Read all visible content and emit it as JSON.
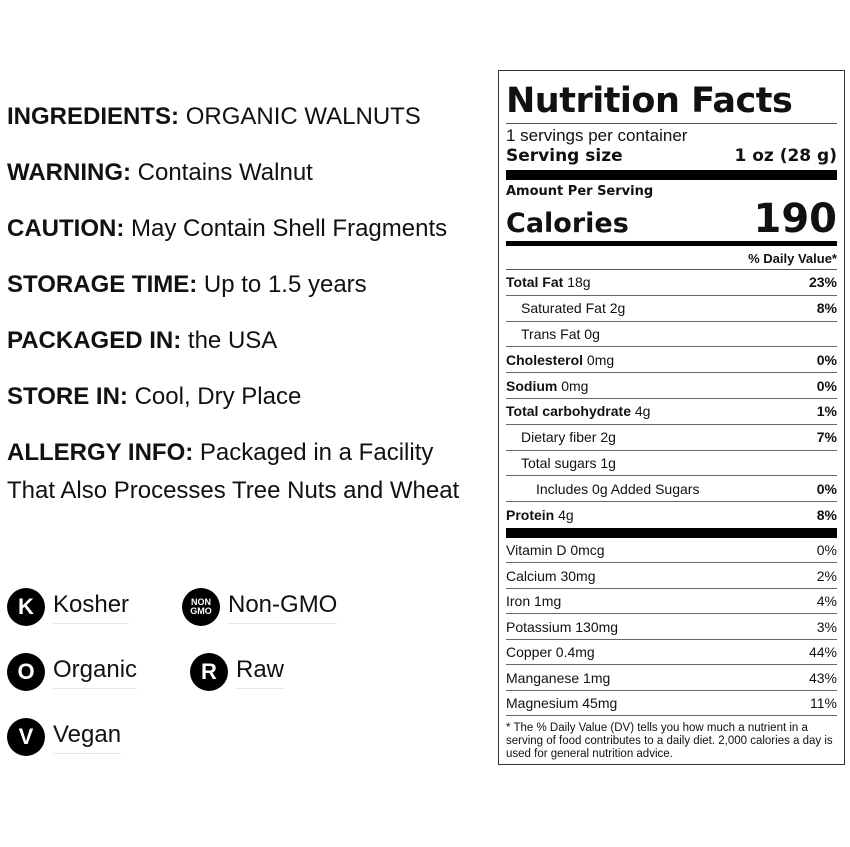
{
  "info": [
    {
      "label": "INGREDIENTS:",
      "value": "ORGANIC WALNUTS"
    },
    {
      "label": "WARNING:",
      "value": "Contains Walnut"
    },
    {
      "label": "CAUTION:",
      "value": "May Contain Shell Fragments"
    },
    {
      "label": "STORAGE TIME:",
      "value": "Up to 1.5 years"
    },
    {
      "label": "PACKAGED IN:",
      "value": "the USA"
    },
    {
      "label": "STORE IN:",
      "value": "Cool, Dry Place"
    },
    {
      "label": "ALLERGY INFO:",
      "value": "Packaged in a Facility That Also Processes Tree Nuts and Wheat"
    }
  ],
  "badges": [
    {
      "icon": "K",
      "label": "Kosher"
    },
    {
      "icon": "NON GMO",
      "label": "Non-GMO"
    },
    {
      "icon": "O",
      "label": "Organic"
    },
    {
      "icon": "R",
      "label": "Raw"
    },
    {
      "icon": "V",
      "label": "Vegan"
    }
  ],
  "nf": {
    "title": "Nutrition Facts",
    "servings": "1 servings per container",
    "serving_label": "Serving size",
    "serving_value": "1 oz (28 g)",
    "amount": "Amount Per Serving",
    "calories_label": "Calories",
    "calories": "190",
    "dv_header": "% Daily Value*",
    "rows": [
      {
        "name": "Total Fat",
        "amt": "18g",
        "dv": "23%",
        "bold": true
      },
      {
        "name": "Saturated Fat",
        "amt": "2g",
        "dv": "8%"
      },
      {
        "name": "Trans Fat",
        "amt": "0g",
        "dv": ""
      },
      {
        "name": "Cholesterol",
        "amt": "0mg",
        "dv": "0%",
        "bold": true
      },
      {
        "name": "Sodium",
        "amt": "0mg",
        "dv": "0%",
        "bold": true
      },
      {
        "name": "Total carbohydrate",
        "amt": "4g",
        "dv": "1%",
        "bold": true
      },
      {
        "name": "Dietary fiber",
        "amt": "2g",
        "dv": "7%"
      },
      {
        "name": "Total sugars",
        "amt": "1g",
        "dv": ""
      },
      {
        "name": "Includes 0g Added Sugars",
        "amt": "",
        "dv": "0%"
      },
      {
        "name": "Protein",
        "amt": "4g",
        "dv": "8%",
        "bold": true
      }
    ],
    "vitamins": [
      {
        "name": "Vitamin D 0mcg",
        "dv": "0%"
      },
      {
        "name": "Calcium 30mg",
        "dv": "2%"
      },
      {
        "name": "Iron 1mg",
        "dv": "4%"
      },
      {
        "name": "Potassium 130mg",
        "dv": "3%"
      },
      {
        "name": "Copper 0.4mg",
        "dv": "44%"
      },
      {
        "name": "Manganese 1mg",
        "dv": "43%"
      },
      {
        "name": "Magnesium 45mg",
        "dv": "11%"
      }
    ],
    "footnote": "* The % Daily Value (DV) tells you how much a nutrient in a serving of food contributes to a daily diet. 2,000 calories a day is used for general nutrition advice."
  }
}
